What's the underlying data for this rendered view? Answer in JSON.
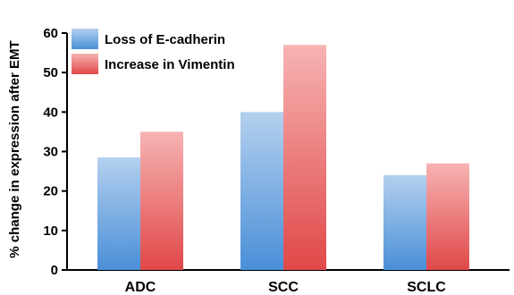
{
  "chart_data": {
    "type": "bar",
    "title": "",
    "xlabel": "",
    "ylabel": "% change in expression after EMT",
    "categories": [
      "ADC",
      "SCC",
      "SCLC"
    ],
    "series": [
      {
        "name": "Loss of E-cadherin",
        "values": [
          28.5,
          40,
          24
        ],
        "color_top": "#b4d0ee",
        "color_bottom": "#4a8fd8"
      },
      {
        "name": "Increase in Vimentin",
        "values": [
          35,
          57,
          27
        ],
        "color_top": "#f7b3b3",
        "color_bottom": "#e04848"
      }
    ],
    "ylim": [
      0,
      60
    ],
    "yticks": [
      0,
      10,
      20,
      30,
      40,
      50,
      60
    ],
    "grid": false,
    "legend_position": "top-left"
  }
}
